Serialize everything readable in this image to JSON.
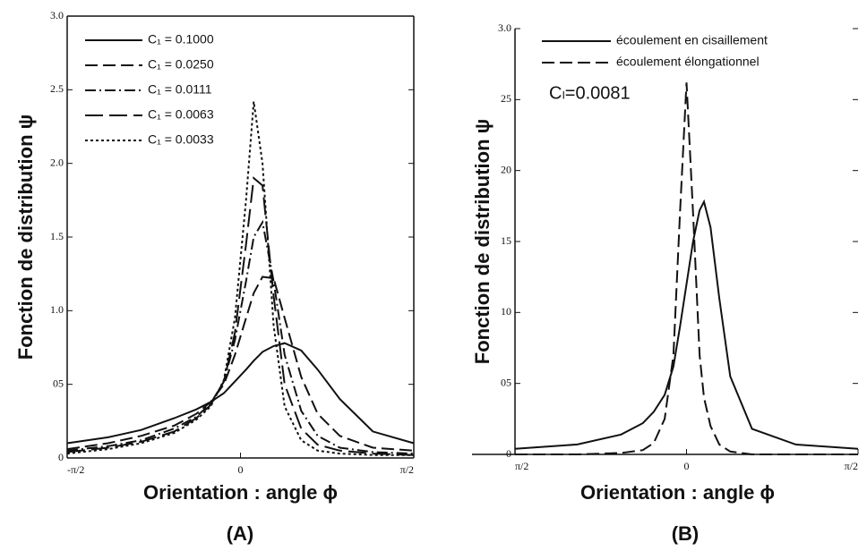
{
  "chart_data": [
    {
      "type": "line",
      "caption": "(A)",
      "x_label": "Orientation : angle ϕ",
      "y_label": "Fonction de distribution ψ",
      "xlim": [
        -1.5708,
        1.5708
      ],
      "ylim": [
        0,
        3
      ],
      "xticks": [
        {
          "value": -1.5708,
          "label": "-π/2"
        },
        0,
        {
          "value": 1.5708,
          "label": "π/2"
        }
      ],
      "yticks": [
        0,
        {
          "value": 0.5,
          "label": "05"
        },
        {
          "value": 1,
          "label": "1.0"
        },
        1.5,
        {
          "value": 2,
          "label": "2.0"
        },
        2.5,
        {
          "value": 3,
          "label": "3.0"
        }
      ],
      "x": [
        -1.5708,
        -1.2,
        -0.9,
        -0.6,
        -0.4,
        -0.27,
        -0.15,
        -0.05,
        0.05,
        0.12,
        0.2,
        0.3,
        0.4,
        0.55,
        0.7,
        0.9,
        1.2,
        1.5708
      ],
      "series": [
        {
          "name": "C₁ = 0.1000",
          "color": "#111111",
          "linestyle": "solid",
          "values": [
            0.1,
            0.14,
            0.19,
            0.27,
            0.33,
            0.38,
            0.44,
            0.52,
            0.6,
            0.66,
            0.72,
            0.76,
            0.78,
            0.73,
            0.6,
            0.4,
            0.18,
            0.1
          ]
        },
        {
          "name": "C₁ = 0.0250",
          "color": "#111111",
          "linestyle": "dashed",
          "values": [
            0.06,
            0.1,
            0.15,
            0.22,
            0.3,
            0.38,
            0.5,
            0.7,
            0.95,
            1.12,
            1.23,
            1.22,
            0.95,
            0.55,
            0.3,
            0.15,
            0.07,
            0.05
          ]
        },
        {
          "name": "C₁ = 0.0111",
          "color": "#111111",
          "linestyle": "dashdot",
          "values": [
            0.05,
            0.08,
            0.12,
            0.2,
            0.28,
            0.37,
            0.52,
            0.8,
            1.2,
            1.5,
            1.6,
            1.2,
            0.7,
            0.32,
            0.15,
            0.07,
            0.04,
            0.03
          ]
        },
        {
          "name": "C₁ = 0.0063",
          "color": "#111111",
          "linestyle": "longdash",
          "values": [
            0.04,
            0.07,
            0.11,
            0.18,
            0.27,
            0.36,
            0.52,
            0.85,
            1.45,
            1.9,
            1.85,
            1.1,
            0.5,
            0.2,
            0.09,
            0.05,
            0.03,
            0.02
          ]
        },
        {
          "name": "C₁ = 0.0033",
          "color": "#111111",
          "linestyle": "dotted",
          "values": [
            0.03,
            0.06,
            0.1,
            0.17,
            0.26,
            0.35,
            0.53,
            0.95,
            1.75,
            2.42,
            2.0,
            0.9,
            0.35,
            0.12,
            0.05,
            0.03,
            0.02,
            0.02
          ]
        }
      ]
    },
    {
      "type": "line",
      "caption": "(B)",
      "x_label": "Orientation : angle ϕ",
      "y_label": "Fonction de distribution ψ",
      "annotation": "Cₗ=0.0081",
      "xlim": [
        -1.5708,
        1.5708
      ],
      "ylim": [
        0,
        3
      ],
      "xticks": [
        {
          "value": -1.5708,
          "label": "π/2"
        },
        0,
        {
          "value": 1.5708,
          "label": "π/2"
        }
      ],
      "yticks": [
        0,
        {
          "value": 0.5,
          "label": "05"
        },
        {
          "value": 1,
          "label": "10"
        },
        {
          "value": 1.5,
          "label": "15"
        },
        {
          "value": 2,
          "label": "20"
        },
        {
          "value": 2.5,
          "label": "25"
        },
        {
          "value": 3,
          "label": "3.0"
        }
      ],
      "x": [
        -1.5708,
        -1.0,
        -0.6,
        -0.4,
        -0.3,
        -0.2,
        -0.12,
        -0.06,
        0,
        0.06,
        0.12,
        0.16,
        0.22,
        0.3,
        0.4,
        0.6,
        1.0,
        1.5708
      ],
      "series": [
        {
          "name": "écoulement en cisaillement",
          "color": "#111111",
          "linestyle": "solid",
          "values": [
            0.04,
            0.07,
            0.14,
            0.22,
            0.3,
            0.42,
            0.62,
            0.9,
            1.2,
            1.5,
            1.72,
            1.78,
            1.6,
            1.1,
            0.55,
            0.18,
            0.07,
            0.04
          ]
        },
        {
          "name": "écoulement élongationnel",
          "color": "#111111",
          "linestyle": "dashed",
          "values": [
            0,
            0,
            0.01,
            0.03,
            0.08,
            0.25,
            0.7,
            1.7,
            2.62,
            1.7,
            0.7,
            0.4,
            0.2,
            0.07,
            0.02,
            0,
            0,
            0
          ]
        }
      ]
    }
  ]
}
